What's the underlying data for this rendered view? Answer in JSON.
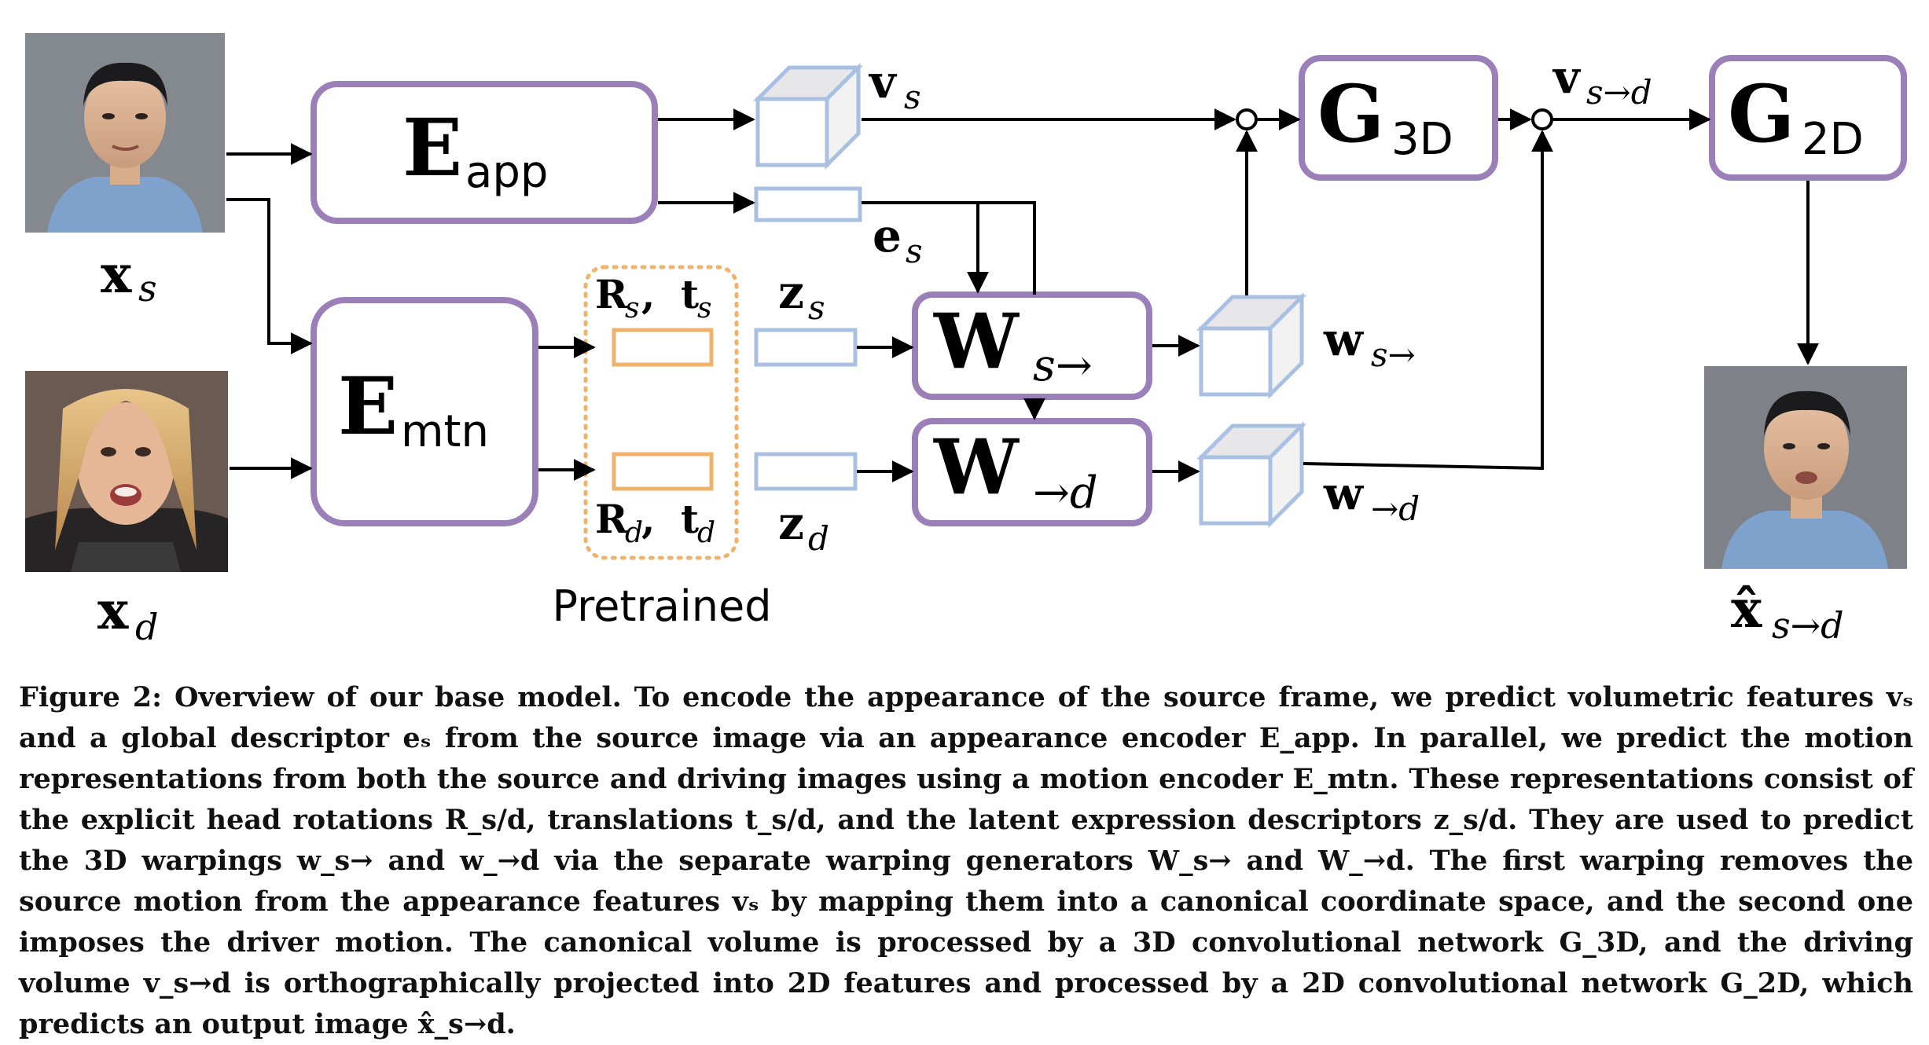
{
  "inputs": {
    "source_label": "x",
    "source_sub": "s",
    "driver_label": "x",
    "driver_sub": "d",
    "output_label": "x̂",
    "output_sub": "s→d"
  },
  "blocks": {
    "e_app": {
      "main": "E",
      "sub": "app"
    },
    "e_mtn": {
      "main": "E",
      "sub": "mtn"
    },
    "w_s": {
      "main": "W",
      "sub": "s→"
    },
    "w_d": {
      "main": "W",
      "sub": "→d"
    },
    "g_3d": {
      "main": "G",
      "sub": "3D"
    },
    "g_2d": {
      "main": "G",
      "sub": "2D"
    }
  },
  "features": {
    "v_s": {
      "main": "v",
      "sub": "s"
    },
    "e_s": {
      "main": "e",
      "sub": "s"
    },
    "z_s": {
      "main": "z",
      "sub": "s"
    },
    "z_d": {
      "main": "z",
      "sub": "d"
    },
    "r_t_s": {
      "r": "R",
      "rsub": "s",
      "sep": ", ",
      "t": "t",
      "tsub": "s"
    },
    "r_t_d": {
      "r": "R",
      "rsub": "d",
      "sep": ", ",
      "t": "t",
      "tsub": "d"
    },
    "w_s_out": {
      "main": "w",
      "sub": "s→"
    },
    "w_d_out": {
      "main": "w",
      "sub": "→d"
    },
    "v_sd": {
      "main": "v",
      "sub": "s→d"
    }
  },
  "pretrained_label": "Pretrained",
  "colors": {
    "block_border": "#9a7fb8",
    "feature_blue": "#a9c0e3",
    "feature_orange": "#f0b36b",
    "arrow": "#000000"
  },
  "caption": {
    "text": "Figure 2: Overview of our base model. To encode the appearance of the source frame, we predict volumetric features vₛ and a global descriptor eₛ from the source image via an appearance encoder E_app. In parallel, we predict the motion representations from both the source and driving images using a motion encoder E_mtn. These representations consist of the explicit head rotations R_s/d, translations t_s/d, and the latent expression descriptors z_s/d. They are used to predict the 3D warpings w_s→ and w_→d via the separate warping generators W_s→ and W_→d. The first warping removes the source motion from the appearance features vₛ by mapping them into a canonical coordinate space, and the second one imposes the driver motion. The canonical volume is processed by a 3D convolutional network G_3D, and the driving volume v_s→d is orthographically projected into 2D features and processed by a 2D convolutional network G_2D, which predicts an output image x̂_s→d."
  }
}
